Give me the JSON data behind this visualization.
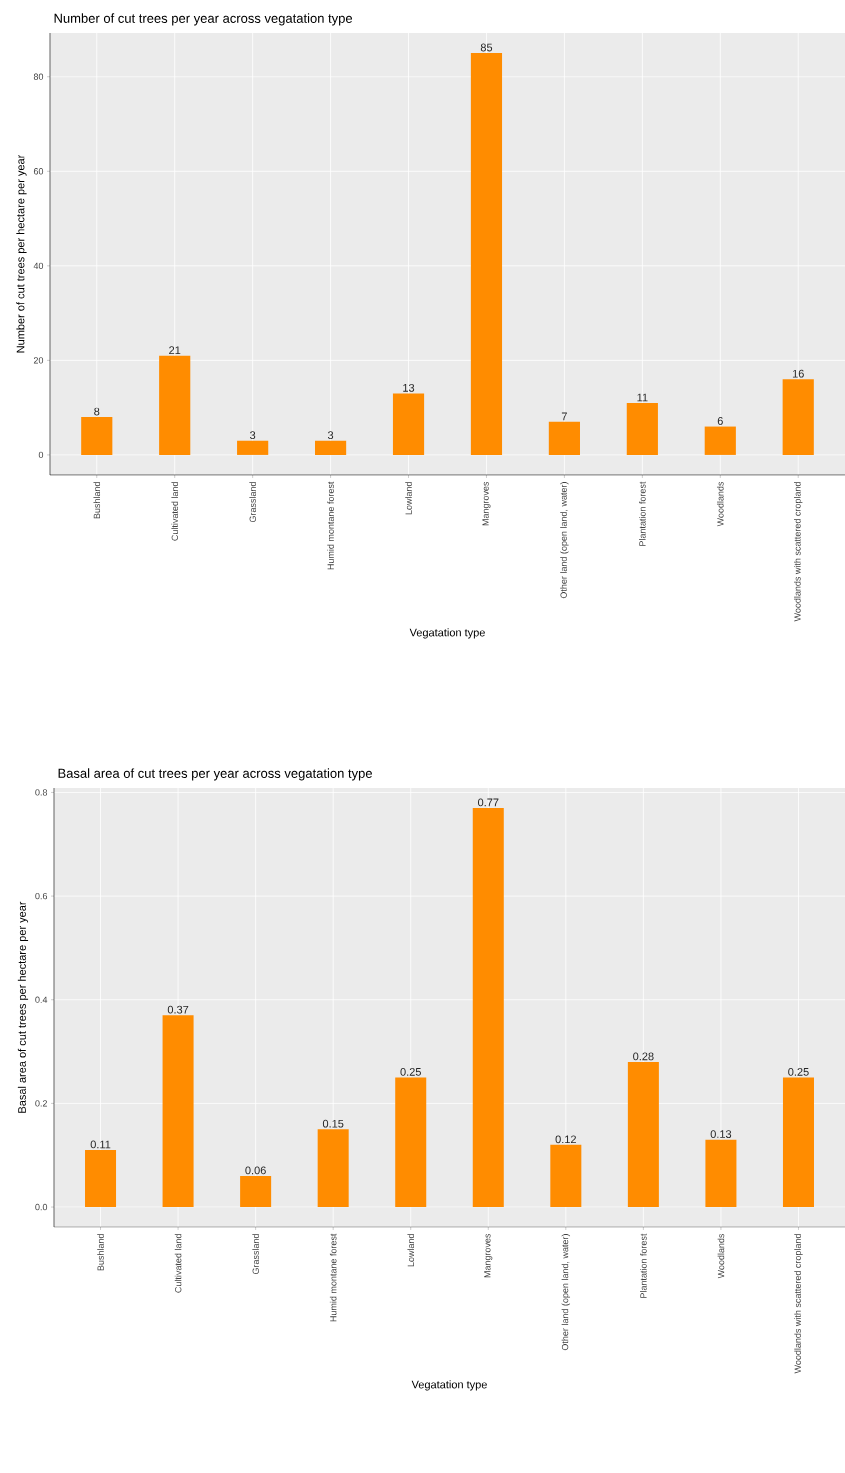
{
  "chart_data": [
    {
      "type": "bar",
      "title": "Number of cut trees per year across vegatation type",
      "xlabel": "Vegatation type",
      "ylabel": "Number of cut trees per hectare per year",
      "categories": [
        "Bushland",
        "Cultivated land",
        "Grassland",
        "Humid montane forest",
        "Lowland",
        "Mangroves",
        "Other land (open land, water)",
        "Plantation forest",
        "Woodlands",
        "Woodlands with scattered cropland"
      ],
      "values": [
        8,
        21,
        3,
        3,
        13,
        85,
        7,
        11,
        6,
        16
      ],
      "color": "#ff8c00",
      "ylim": [
        -4.25,
        89.25
      ],
      "yticks": [
        0,
        20,
        40,
        60,
        80
      ],
      "grid": true,
      "data_labels": true
    },
    {
      "type": "bar",
      "title": "Basal area of cut trees per year across vegatation type",
      "xlabel": "Vegatation type",
      "ylabel": "Basal area of cut trees per hectare per year",
      "categories": [
        "Bushland",
        "Cultivated land",
        "Grassland",
        "Humid montane forest",
        "Lowland",
        "Mangroves",
        "Other land (open land, water)",
        "Plantation forest",
        "Woodlands",
        "Woodlands with scattered cropland"
      ],
      "values": [
        0.11,
        0.37,
        0.06,
        0.15,
        0.25,
        0.77,
        0.12,
        0.28,
        0.13,
        0.25
      ],
      "color": "#ff8c00",
      "ylim": [
        -0.0385,
        0.8085
      ],
      "yticks": [
        {
          "value": 0,
          "label": "0.0"
        },
        {
          "value": 0.2,
          "label": "0.2"
        },
        {
          "value": 0.4,
          "label": "0.4"
        },
        {
          "value": 0.6,
          "label": "0.6"
        },
        {
          "value": 0.8,
          "label": "0.8"
        }
      ],
      "grid": true,
      "data_labels": true
    }
  ]
}
